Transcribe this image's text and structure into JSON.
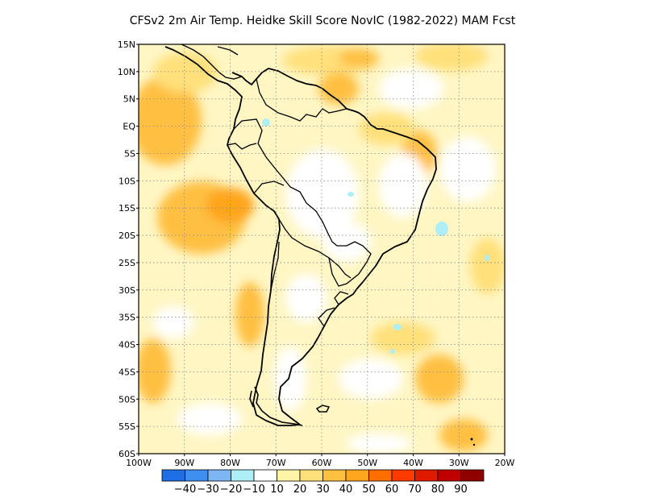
{
  "title": "CFSv2  2m Air Temp. Heidke Skill Score NovIC (1982-2022) MAM Fcst",
  "lat_ticks": [
    "15N",
    "10N",
    "5N",
    "EQ",
    "5S",
    "10S",
    "15S",
    "20S",
    "25S",
    "30S",
    "35S",
    "40S",
    "45S",
    "50S",
    "55S",
    "60S"
  ],
  "lon_ticks": [
    "100W",
    "90W",
    "80W",
    "70W",
    "60W",
    "50W",
    "40W",
    "30W",
    "20W"
  ],
  "colorbar": {
    "colors": [
      "#1e6fe6",
      "#3f8ff0",
      "#7db6f2",
      "#aeeef6",
      "#ffffff",
      "#fff4a8",
      "#ffe07a",
      "#ffc042",
      "#ffa51e",
      "#ff6f00",
      "#ff3a00",
      "#e01a00",
      "#c00000",
      "#900000"
    ],
    "labels": [
      "-40",
      "-30",
      "-20",
      "-10",
      "10",
      "20",
      "30",
      "40",
      "50",
      "60",
      "70",
      "80",
      "90"
    ]
  },
  "background_color": "#fff6c4",
  "icon_legend": {
    "ocean_shading": "skill-field",
    "coastline": "south-america-outline"
  }
}
